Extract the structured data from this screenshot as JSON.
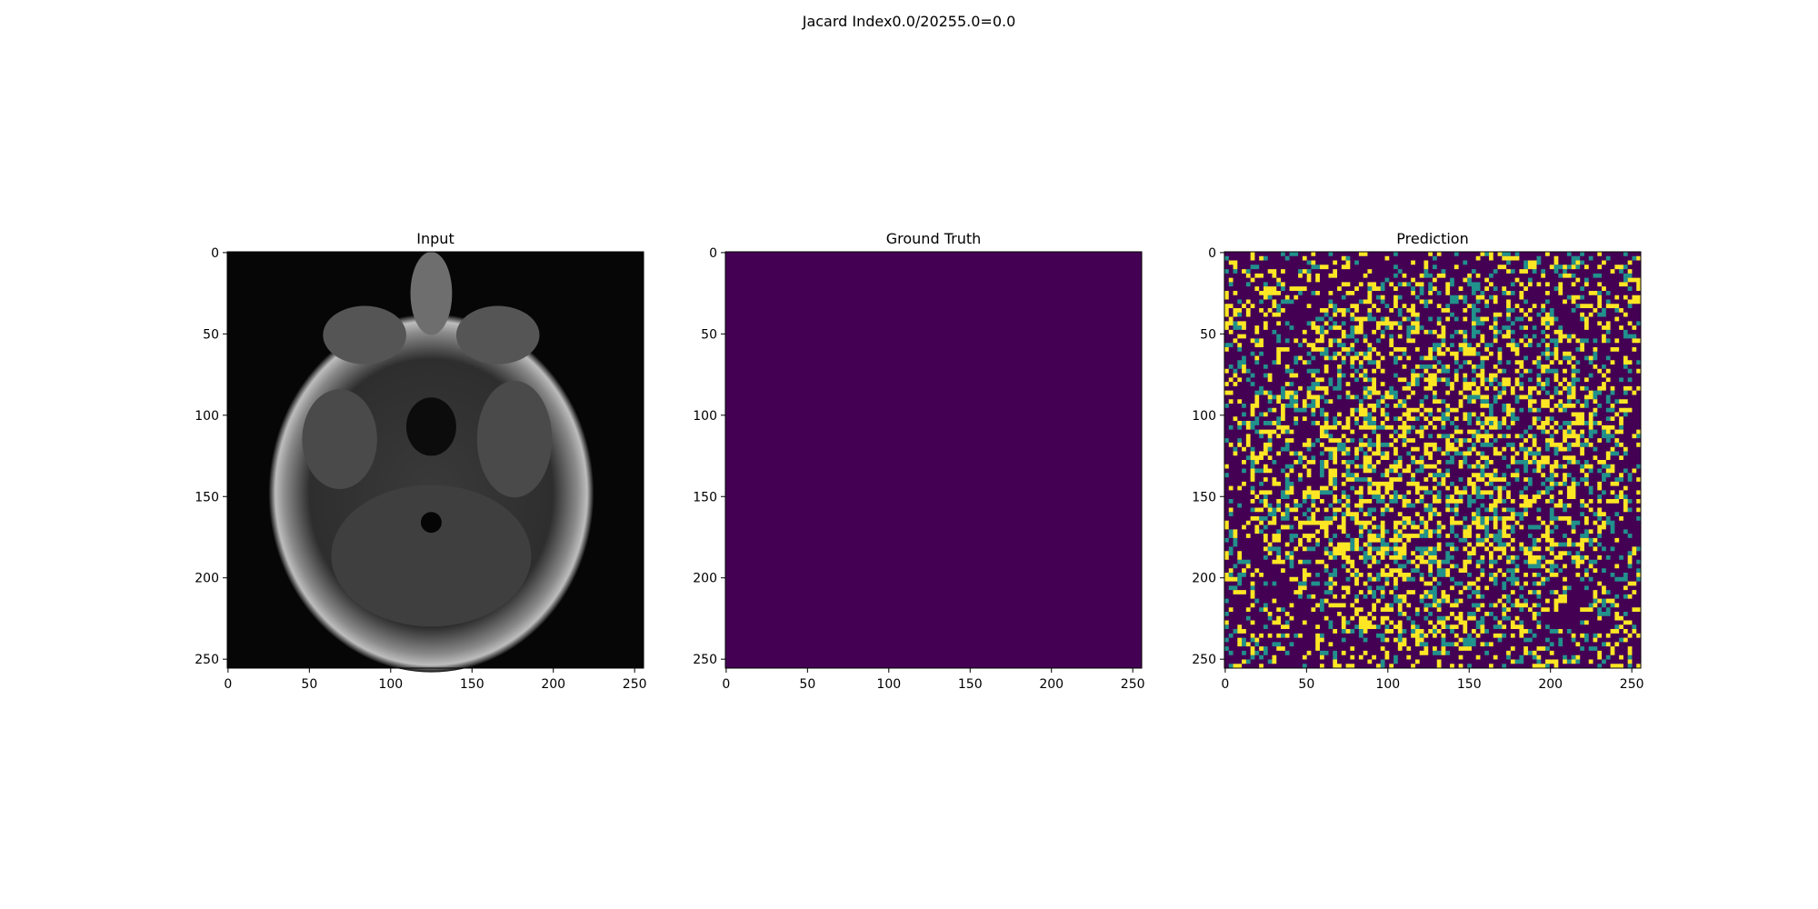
{
  "figure": {
    "suptitle": "Jacard Index0.0/20255.0=0.0"
  },
  "chart_data": [
    {
      "type": "heatmap",
      "title": "Input",
      "colormap": "gray",
      "xlim": [
        0,
        255
      ],
      "ylim": [
        255,
        0
      ],
      "xticks": [
        0,
        50,
        100,
        150,
        200,
        250
      ],
      "yticks": [
        0,
        50,
        100,
        150,
        200,
        250
      ],
      "content": "axial brain MRI slice"
    },
    {
      "type": "heatmap",
      "title": "Ground Truth",
      "colormap": "viridis",
      "fill_color": "#440154",
      "value": 0,
      "xlim": [
        0,
        255
      ],
      "ylim": [
        255,
        0
      ],
      "xticks": [
        0,
        50,
        100,
        150,
        200,
        250
      ],
      "yticks": [
        0,
        50,
        100,
        150,
        200,
        250
      ]
    },
    {
      "type": "heatmap",
      "title": "Prediction",
      "colormap": "viridis",
      "colors": {
        "low": "#440154",
        "mid": "#21918c",
        "high": "#fde725"
      },
      "xlim": [
        0,
        255
      ],
      "ylim": [
        255,
        0
      ],
      "xticks": [
        0,
        50,
        100,
        150,
        200,
        250
      ],
      "yticks": [
        0,
        50,
        100,
        150,
        200,
        250
      ],
      "content": "noisy binary mask"
    }
  ]
}
